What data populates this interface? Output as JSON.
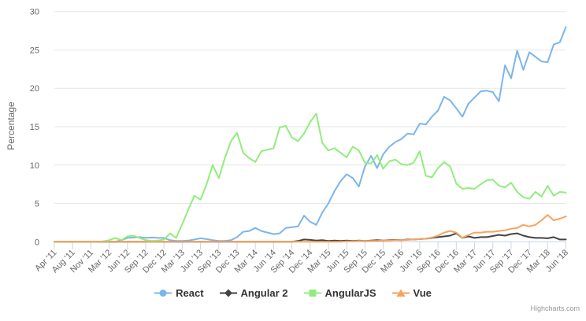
{
  "chart": {
    "credit": "Highcharts.com",
    "background": "#ffffff",
    "grid_color": "#e6e6e6",
    "axis_color": "#ccd6eb",
    "label_color": "#666666",
    "legend_text_color": "#333333"
  },
  "chart_data": {
    "type": "line",
    "title": "",
    "xlabel": "",
    "ylabel": "Percentage",
    "ylim": [
      0,
      30
    ],
    "y_tick_labels": [
      "0",
      "5",
      "10",
      "15",
      "20",
      "25",
      "30"
    ],
    "grid": true,
    "legend_position": "bottom",
    "x_frequency": "monthly",
    "x_start": "Apr 2011",
    "x_end": "Jun 2018",
    "x_tick_labels": [
      "Apr '11",
      "Aug '11",
      "Nov '11",
      "Mar '12",
      "Jun '12",
      "Sep '12",
      "Dec '12",
      "Mar '13",
      "Jun '13",
      "Sep '13",
      "Dec '13",
      "Mar '14",
      "Jun '14",
      "Sep '14",
      "Dec '14",
      "Mar '15",
      "Jun '15",
      "Sep '15",
      "Dec '15",
      "Mar '16",
      "Jun '16",
      "Sep '16",
      "Dec '16",
      "Mar '17",
      "Jun '17",
      "Sep '17",
      "Dec '17",
      "Mar '18",
      "Jun '18"
    ],
    "x_tick_point_indices": [
      0,
      4,
      7,
      11,
      14,
      17,
      20,
      23,
      26,
      29,
      32,
      35,
      38,
      41,
      44,
      47,
      50,
      53,
      56,
      59,
      62,
      65,
      68,
      71,
      74,
      77,
      80,
      83,
      86
    ],
    "series": [
      {
        "name": "React",
        "color": "#7cb5ec",
        "marker": "circle",
        "values": [
          0,
          0,
          0,
          0,
          0,
          0,
          0,
          0,
          0,
          0,
          0,
          0,
          0,
          0.2,
          0.5,
          0.55,
          0.6,
          0.5,
          0.55,
          0.5,
          0.5,
          0.2,
          0.1,
          0.1,
          0.15,
          0.3,
          0.45,
          0.35,
          0.2,
          0.1,
          0.1,
          0.2,
          0.6,
          1.3,
          1.4,
          1.8,
          1.4,
          1.2,
          1.0,
          1.1,
          1.8,
          1.9,
          2.0,
          3.4,
          2.6,
          2.2,
          3.8,
          5.0,
          6.6,
          7.9,
          8.8,
          8.3,
          7.2,
          9.8,
          11.2,
          9.6,
          11.4,
          12.4,
          13.0,
          13.4,
          14.1,
          14.0,
          15.4,
          15.3,
          16.3,
          17.1,
          18.9,
          18.4,
          17.4,
          16.3,
          18.0,
          18.8,
          19.6,
          19.7,
          19.5,
          18.3,
          23.0,
          21.3,
          24.9,
          22.4,
          24.7,
          24.1,
          23.5,
          23.4,
          25.7,
          26.0,
          28.0
        ]
      },
      {
        "name": "Angular 2",
        "color": "#434348",
        "marker": "diamond",
        "values": [
          0,
          0,
          0,
          0,
          0,
          0,
          0,
          0,
          0,
          0,
          0,
          0,
          0,
          0,
          0,
          0,
          0,
          0,
          0,
          0,
          0,
          0,
          0,
          0,
          0,
          0,
          0,
          0,
          0,
          0,
          0,
          0,
          0,
          0,
          0,
          0,
          0,
          0,
          0,
          0,
          0,
          0,
          0.1,
          0.3,
          0.25,
          0.15,
          0.2,
          0.1,
          0.15,
          0.1,
          0.15,
          0.1,
          0.15,
          0.1,
          0.15,
          0.2,
          0.15,
          0.2,
          0.25,
          0.2,
          0.3,
          0.3,
          0.35,
          0.4,
          0.5,
          0.6,
          0.7,
          0.8,
          1.1,
          0.5,
          0.7,
          0.5,
          0.6,
          0.6,
          0.75,
          0.9,
          0.8,
          1.0,
          1.1,
          0.8,
          0.6,
          0.5,
          0.5,
          0.45,
          0.6,
          0.3,
          0.3
        ]
      },
      {
        "name": "AngularJS",
        "color": "#90ed7d",
        "marker": "square",
        "values": [
          0,
          0,
          0,
          0,
          0,
          0,
          0,
          0,
          0,
          0,
          0.1,
          0.2,
          0.5,
          0.2,
          0.7,
          0.8,
          0.5,
          0.2,
          0.1,
          0.15,
          0.3,
          1.1,
          0.5,
          2.3,
          4.2,
          6.0,
          5.5,
          7.5,
          10.0,
          8.3,
          10.9,
          13.1,
          14.2,
          11.6,
          10.9,
          10.4,
          11.8,
          12.0,
          12.2,
          14.9,
          15.1,
          13.6,
          13.1,
          14.1,
          15.6,
          16.7,
          12.9,
          11.9,
          12.2,
          11.6,
          11.0,
          12.4,
          11.9,
          10.3,
          10.2,
          11.3,
          9.5,
          10.5,
          10.7,
          10.1,
          10.0,
          10.3,
          11.8,
          8.6,
          8.4,
          9.6,
          10.4,
          9.8,
          7.6,
          6.9,
          7.0,
          6.9,
          7.5,
          8.0,
          8.1,
          7.3,
          7.1,
          7.7,
          6.5,
          5.8,
          5.6,
          6.5,
          5.9,
          7.3,
          6.0,
          6.5,
          6.4
        ]
      },
      {
        "name": "Vue",
        "color": "#f7a35c",
        "marker": "triangle",
        "values": [
          0,
          0,
          0,
          0,
          0,
          0,
          0,
          0,
          0,
          0,
          0,
          0,
          0,
          0,
          0,
          0,
          0,
          0,
          0,
          0,
          0,
          0,
          0,
          0,
          0,
          0,
          0,
          0,
          0,
          0,
          0,
          0,
          0,
          0,
          0,
          0,
          0,
          0,
          0,
          0,
          0,
          0,
          0,
          0,
          0,
          0,
          0,
          0,
          0,
          0,
          0.05,
          0.05,
          0.1,
          0.1,
          0.1,
          0.1,
          0.15,
          0.15,
          0.2,
          0.2,
          0.25,
          0.3,
          0.35,
          0.4,
          0.55,
          0.8,
          1.2,
          1.4,
          1.2,
          0.5,
          0.9,
          1.2,
          1.2,
          1.3,
          1.3,
          1.4,
          1.5,
          1.7,
          1.8,
          2.2,
          2.0,
          2.2,
          2.8,
          3.5,
          2.8,
          3.0,
          3.3
        ]
      }
    ]
  }
}
